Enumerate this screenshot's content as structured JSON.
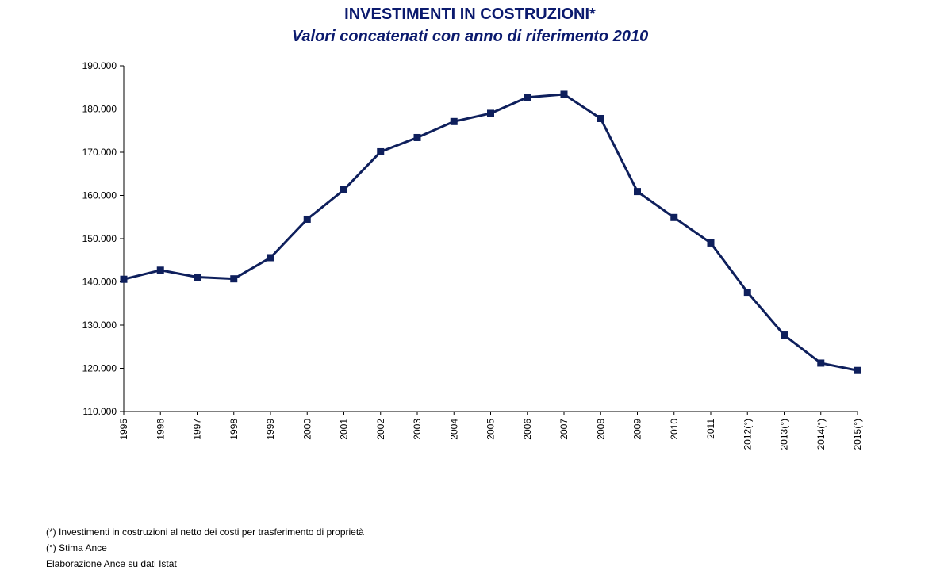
{
  "chart_data": {
    "type": "line",
    "title": "INVESTIMENTI IN COSTRUZIONI*",
    "subtitle": "Valori concatenati con anno di riferimento 2010",
    "categories": [
      "1995",
      "1996",
      "1997",
      "1998",
      "1999",
      "2000",
      "2001",
      "2002",
      "2003",
      "2004",
      "2005",
      "2006",
      "2007",
      "2008",
      "2009",
      "2010",
      "2011",
      "2012(°)",
      "2013(°)",
      "2014(°)",
      "2015(°)"
    ],
    "series": [
      {
        "values": [
          140600,
          142700,
          141100,
          140700,
          145600,
          154500,
          161300,
          170100,
          173400,
          177100,
          179000,
          182700,
          183400,
          177800,
          160900,
          154900,
          149000,
          137600,
          127700,
          121200,
          119500
        ]
      }
    ],
    "ylim": [
      110000,
      190000
    ],
    "yticks": [
      110000,
      120000,
      130000,
      140000,
      150000,
      160000,
      170000,
      180000,
      190000
    ],
    "ytick_labels": [
      "110.000",
      "120.000",
      "130.000",
      "140.000",
      "150.000",
      "160.000",
      "170.000",
      "180.000",
      "190.000"
    ],
    "xlabel": "",
    "ylabel": "",
    "grid": false,
    "line_color": "#0e1f5c",
    "title_color": "#0b1a6e"
  },
  "notes": {
    "line1": "(*) Investimenti in costruzioni al netto dei costi per trasferimento di proprietà",
    "line2": "(°) Stima Ance",
    "line3": "Elaborazione Ance su dati Istat"
  }
}
